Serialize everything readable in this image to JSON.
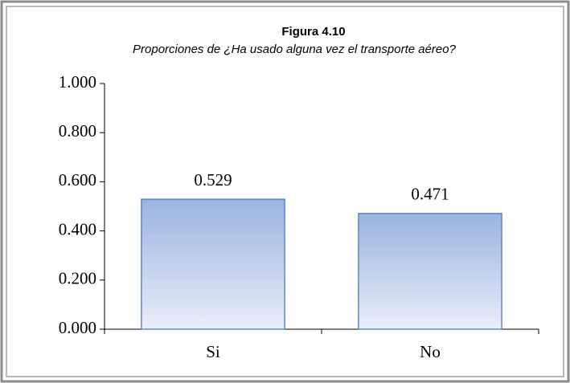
{
  "chart_data": {
    "type": "bar",
    "title": "Figura 4.10",
    "subtitle": "Proporciones de ¿Ha usado alguna vez el transporte aéreo?",
    "categories": [
      "Si",
      "No"
    ],
    "values": [
      0.529,
      0.471
    ],
    "color": "#9bb3e0",
    "ylim": [
      0,
      1
    ],
    "yticks": [
      {
        "value": 0,
        "label": "0.000"
      },
      {
        "value": 0.2,
        "label": "0.200"
      },
      {
        "value": 0.4,
        "label": "0.400"
      },
      {
        "value": 0.6,
        "label": "0.600"
      },
      {
        "value": 0.8,
        "label": "0.800"
      },
      {
        "value": 1,
        "label": "1.000"
      }
    ],
    "grid": false
  }
}
